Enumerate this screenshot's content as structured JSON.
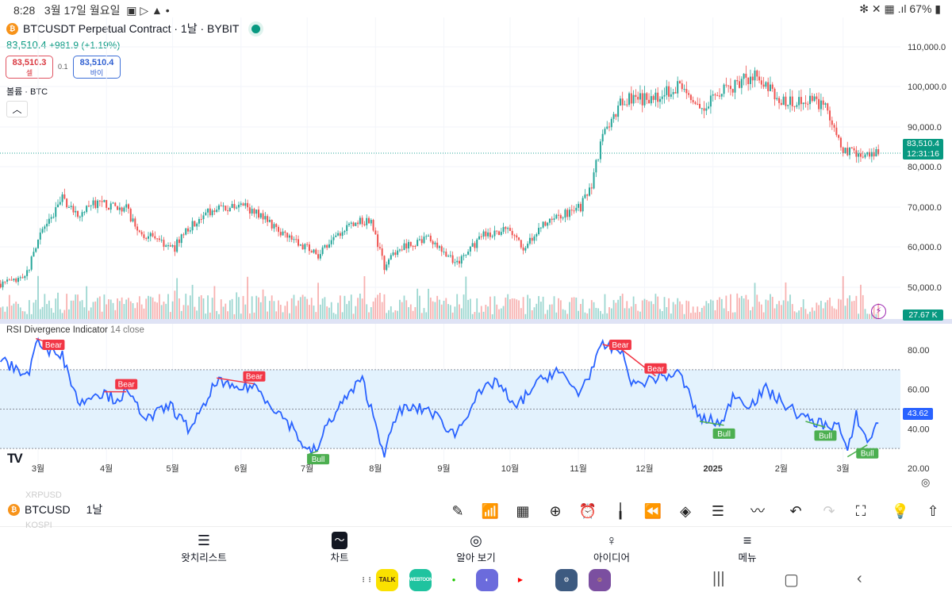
{
  "status_bar": {
    "time": "8:28",
    "date": "3월 17일 월요일",
    "icons": [
      "gallery-icon",
      "play-store-icon",
      "warning-icon",
      "dot-icon"
    ],
    "right_icons": [
      "bluetooth-icon",
      "mute-icon",
      "wifi-icon",
      "signal-icon"
    ],
    "battery": "67%"
  },
  "header": {
    "title": "BTCUSDT Perpetual Contract · 1날 · BYBIT",
    "price": "83,510.4",
    "change": "+981.9 (+1.19%)",
    "sell_price": "83,510.3",
    "sell_label": "셀",
    "spread": "0.1",
    "buy_price": "83,510.4",
    "buy_label": "바이",
    "volume_label": "볼륨 · BTC",
    "collapse_icon": "chevron-up-icon"
  },
  "colors": {
    "up": "#26a69a",
    "down": "#ef5350",
    "rsi": "#2962ff",
    "bear": "#f23645",
    "bull": "#4caf50",
    "band": "#e3f2fd"
  },
  "price_axis": {
    "ticks": [
      "110,000.0",
      "100,000.0",
      "90,000.0",
      "80,000.0",
      "70,000.0",
      "60,000.0",
      "50,000.0"
    ],
    "last_price": "83,510.4",
    "countdown": "12:31:16",
    "volume_tag": "27.67 K"
  },
  "rsi_panel": {
    "name": "RSI Divergence Indicator",
    "params": "14 close",
    "ticks": [
      "80.00",
      "60.00",
      "40.00",
      "20.00"
    ],
    "last": "43.62",
    "band": [
      30,
      70
    ]
  },
  "time_axis": [
    {
      "label": "3월",
      "date": "2024-03-01"
    },
    {
      "label": "4월",
      "date": "2024-04-01"
    },
    {
      "label": "5월",
      "date": "2024-05-01"
    },
    {
      "label": "6월",
      "date": "2024-06-01"
    },
    {
      "label": "7월",
      "date": "2024-07-01"
    },
    {
      "label": "8월",
      "date": "2024-08-01"
    },
    {
      "label": "9월",
      "date": "2024-09-01"
    },
    {
      "label": "10월",
      "date": "2024-10-01"
    },
    {
      "label": "11월",
      "date": "2024-11-01"
    },
    {
      "label": "12월",
      "date": "2024-12-01"
    },
    {
      "label": "2025",
      "date": "2025-01-01"
    },
    {
      "label": "2월",
      "date": "2025-02-01"
    },
    {
      "label": "3월",
      "date": "2025-03-01"
    }
  ],
  "chart_data": {
    "type": "candlestick",
    "price_path": [
      [
        "2024-02-13",
        51000
      ],
      [
        "2024-02-24",
        52000
      ],
      [
        "2024-03-01",
        62000
      ],
      [
        "2024-03-12",
        72000
      ],
      [
        "2024-03-19",
        68000
      ],
      [
        "2024-03-27",
        71000
      ],
      [
        "2024-04-10",
        70000
      ],
      [
        "2024-04-15",
        64000
      ],
      [
        "2024-05-02",
        60000
      ],
      [
        "2024-05-06",
        64000
      ],
      [
        "2024-05-20",
        70000
      ],
      [
        "2024-06-04",
        70000
      ],
      [
        "2024-06-22",
        63000
      ],
      [
        "2024-07-06",
        58000
      ],
      [
        "2024-07-21",
        66000
      ],
      [
        "2024-07-30",
        67000
      ],
      [
        "2024-08-05",
        55000
      ],
      [
        "2024-08-11",
        60000
      ],
      [
        "2024-08-25",
        62000
      ],
      [
        "2024-09-07",
        56000
      ],
      [
        "2024-09-19",
        63000
      ],
      [
        "2024-09-30",
        65000
      ],
      [
        "2024-10-07",
        60000
      ],
      [
        "2024-10-18",
        67000
      ],
      [
        "2024-11-02",
        70000
      ],
      [
        "2024-11-07",
        76000
      ],
      [
        "2024-11-12",
        88000
      ],
      [
        "2024-11-21",
        97000
      ],
      [
        "2024-12-05",
        97000
      ],
      [
        "2024-12-17",
        100000
      ],
      [
        "2024-12-26",
        95000
      ],
      [
        "2025-01-09",
        100000
      ],
      [
        "2025-01-20",
        103000
      ],
      [
        "2025-01-31",
        97000
      ],
      [
        "2025-02-21",
        96000
      ],
      [
        "2025-02-28",
        85000
      ],
      [
        "2025-03-10",
        82000
      ],
      [
        "2025-03-17",
        83510.4
      ]
    ],
    "rsi_path": [
      [
        "2024-02-13",
        75
      ],
      [
        "2024-02-20",
        70
      ],
      [
        "2024-02-26",
        68
      ],
      [
        "2024-02-29",
        85
      ],
      [
        "2024-03-05",
        78
      ],
      [
        "2024-03-08",
        82
      ],
      [
        "2024-03-12",
        77
      ],
      [
        "2024-03-20",
        52
      ],
      [
        "2024-03-25",
        58
      ],
      [
        "2024-03-31",
        58
      ],
      [
        "2024-04-05",
        55
      ],
      [
        "2024-04-10",
        58
      ],
      [
        "2024-04-20",
        45
      ],
      [
        "2024-04-30",
        52
      ],
      [
        "2024-05-08",
        40
      ],
      [
        "2024-05-15",
        50
      ],
      [
        "2024-05-21",
        65
      ],
      [
        "2024-05-28",
        60
      ],
      [
        "2024-06-07",
        62
      ],
      [
        "2024-06-15",
        52
      ],
      [
        "2024-06-25",
        40
      ],
      [
        "2024-07-01",
        28
      ],
      [
        "2024-07-06",
        30
      ],
      [
        "2024-07-10",
        42
      ],
      [
        "2024-07-18",
        55
      ],
      [
        "2024-07-26",
        65
      ],
      [
        "2024-08-05",
        28
      ],
      [
        "2024-08-12",
        50
      ],
      [
        "2024-08-25",
        50
      ],
      [
        "2024-09-06",
        37
      ],
      [
        "2024-09-15",
        55
      ],
      [
        "2024-09-25",
        65
      ],
      [
        "2024-10-03",
        50
      ],
      [
        "2024-10-12",
        62
      ],
      [
        "2024-10-22",
        70
      ],
      [
        "2024-11-01",
        58
      ],
      [
        "2024-11-07",
        70
      ],
      [
        "2024-11-12",
        82
      ],
      [
        "2024-11-20",
        80
      ],
      [
        "2024-11-26",
        62
      ],
      [
        "2024-12-06",
        66
      ],
      [
        "2024-12-17",
        68
      ],
      [
        "2024-12-26",
        45
      ],
      [
        "2025-01-06",
        43
      ],
      [
        "2025-01-10",
        58
      ],
      [
        "2025-01-18",
        52
      ],
      [
        "2025-01-25",
        60
      ],
      [
        "2025-02-03",
        52
      ],
      [
        "2025-02-12",
        45
      ],
      [
        "2025-02-21",
        42
      ],
      [
        "2025-02-27",
        42
      ],
      [
        "2025-03-03",
        27
      ],
      [
        "2025-03-07",
        47
      ],
      [
        "2025-03-12",
        33
      ],
      [
        "2025-03-17",
        43.62
      ]
    ],
    "divergences": [
      {
        "label": "Bear",
        "from": "2024-02-29",
        "to": "2024-03-08"
      },
      {
        "label": "Bear",
        "from": "2024-03-31",
        "to": "2024-04-10"
      },
      {
        "label": "Bear",
        "from": "2024-05-21",
        "to": "2024-06-07"
      },
      {
        "label": "Bull",
        "from": "2024-07-01",
        "to": "2024-07-06"
      },
      {
        "label": "Bear",
        "from": "2024-11-12",
        "to": "2024-11-20"
      },
      {
        "label": "Bear",
        "from": "2024-11-20",
        "to": "2024-12-06"
      },
      {
        "label": "Bull",
        "from": "2024-12-26",
        "to": "2025-01-06"
      },
      {
        "label": "Bull",
        "from": "2025-02-12",
        "to": "2025-02-21"
      },
      {
        "label": "Bull",
        "from": "2025-03-03",
        "to": "2025-03-12"
      }
    ]
  },
  "toolbar": {
    "symbol": "BTCUSD",
    "interval": "1날",
    "ghost_above": "XRPUSD",
    "ghost_below": "KOSPI",
    "icons": [
      "draw-icon",
      "indicators-icon",
      "layout-icon",
      "add-icon",
      "alert-icon",
      "candle-type-icon",
      "replay-icon",
      "layers-icon",
      "settings-icon",
      "trend-icon",
      "undo-icon",
      "redo-icon",
      "fullscreen-icon",
      "idea-icon",
      "share-icon"
    ]
  },
  "nav": [
    {
      "label": "왓치리스트",
      "icon": "watchlist-icon"
    },
    {
      "label": "차트",
      "icon": "chart-icon"
    },
    {
      "label": "알아 보기",
      "icon": "explore-icon"
    },
    {
      "label": "아이디어",
      "icon": "ideas-icon"
    },
    {
      "label": "메뉴",
      "icon": "menu-icon"
    }
  ],
  "dock": {
    "apps": [
      "TALK",
      "WEBTOON",
      "",
      "",
      "",
      "",
      ""
    ]
  }
}
